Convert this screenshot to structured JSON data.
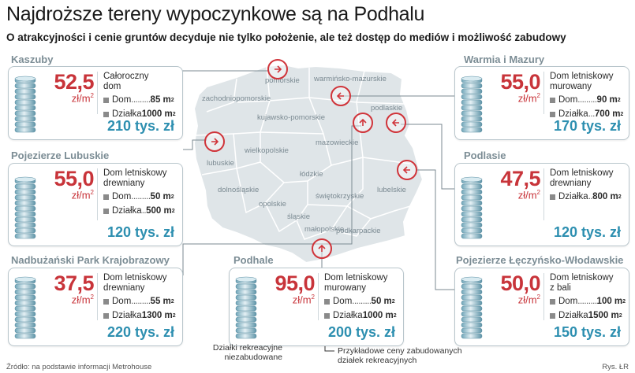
{
  "header": {
    "title": "Najdroższe tereny wypoczynkowe są na Podhalu",
    "subtitle": "O atrakcyjności i cenie gruntów decyduje nie tylko położenie, ale też dostęp do mediów i możliwość zabudowy"
  },
  "map_labels": {
    "pomorskie": "pomorskie",
    "warminsko": "warmińsko-mazurskie",
    "zachodniopomorskie": "zachodniopomorskie",
    "kujawsko": "kujawsko-pomorskie",
    "podlaskie": "podlaskie",
    "lubuskie": "lubuskie",
    "wielkopolskie": "wielkopolskie",
    "mazowieckie": "mazowieckie",
    "lodzkie": "łódzkie",
    "dolnoslaskie": "dolnośląskie",
    "opolskie": "opolskie",
    "swietokrzyskie": "świętokrzyskie",
    "lubelskie": "lubelskie",
    "slaskie": "śląskie",
    "malopolskie": "małopolskie",
    "podkarpackie": "podkarpackie"
  },
  "colors": {
    "price_red": "#c8343a",
    "total_blue": "#2d8fb0",
    "map_fill": "#dfe5e8",
    "card_border": "#b9c6cc",
    "marker_ring": "#d0343a"
  },
  "regions": [
    {
      "id": "kaszuby",
      "name": "Kaszuby",
      "price": "52,5",
      "unit": "zł/m",
      "unit_sup": "2",
      "type_lines": [
        "Całoroczny",
        "dom"
      ],
      "dom_label": "Dom",
      "dom_dots": ".........",
      "dom_value": "85 m",
      "dom_sup": "2",
      "dzialka_label": "Działka",
      "dzialka_dots": "",
      "dzialka_value": "1000 m",
      "dzialka_sup": "2",
      "total": "210 tys. zł"
    },
    {
      "id": "warmia",
      "name": "Warmia i Mazury",
      "price": "55,0",
      "unit": "zł/m",
      "unit_sup": "2",
      "type_lines": [
        "Dom letniskowy",
        "murowany"
      ],
      "dom_label": "Dom",
      "dom_dots": ".........",
      "dom_value": "90 m",
      "dom_sup": "2",
      "dzialka_label": "Działka",
      "dzialka_dots": "...",
      "dzialka_value": "700 m",
      "dzialka_sup": "2",
      "total": "170 tys. zł"
    },
    {
      "id": "lubuskie",
      "name": "Pojezierze Lubuskie",
      "price": "55,0",
      "unit": "zł/m",
      "unit_sup": "2",
      "type_lines": [
        "Dom letniskowy",
        "drewniany"
      ],
      "dom_label": "Dom",
      "dom_dots": ".........",
      "dom_value": "50 m",
      "dom_sup": "2",
      "dzialka_label": "Działka",
      "dzialka_dots": "..",
      "dzialka_value": "500 m",
      "dzialka_sup": "2",
      "total": "120 tys. zł"
    },
    {
      "id": "podlasie",
      "name": "Podlasie",
      "price": "47,5",
      "unit": "zł/m",
      "unit_sup": "2",
      "type_lines": [
        "Dom letniskowy",
        "drewniany"
      ],
      "dzialka_label": "Działka",
      "dzialka_dots": "..",
      "dzialka_value": "800 m",
      "dzialka_sup": "2",
      "total": "120 tys. zł"
    },
    {
      "id": "nadbuzanski",
      "name": "Nadbużański Park Krajobrazowy",
      "price": "37,5",
      "unit": "zł/m",
      "unit_sup": "2",
      "type_lines": [
        "Dom letniskowy",
        "drewniany"
      ],
      "dom_label": "Dom",
      "dom_dots": ".........",
      "dom_value": "55 m",
      "dom_sup": "2",
      "dzialka_label": "Działka",
      "dzialka_dots": "",
      "dzialka_value": "1300 m",
      "dzialka_sup": "2",
      "total": "220 tys. zł"
    },
    {
      "id": "podhale",
      "name": "Podhale",
      "price": "95,0",
      "unit": "zł/m",
      "unit_sup": "2",
      "type_lines": [
        "Dom letniskowy",
        "murowany"
      ],
      "dom_label": "Dom",
      "dom_dots": ".........",
      "dom_value": "50 m",
      "dom_sup": "2",
      "dzialka_label": "Działka",
      "dzialka_dots": "",
      "dzialka_value": "1000 m",
      "dzialka_sup": "2",
      "total": "200 tys. zł"
    },
    {
      "id": "leczynsko",
      "name": "Pojezierze Łęczyńsko-Włodawskie",
      "price": "50,0",
      "unit": "zł/m",
      "unit_sup": "2",
      "type_lines": [
        "Dom letniskowy",
        "z bali"
      ],
      "dom_label": "Dom",
      "dom_dots": ".........",
      "dom_value": "100 m",
      "dom_sup": "2",
      "dzialka_label": "Działka",
      "dzialka_dots": "",
      "dzialka_value": "1500 m",
      "dzialka_sup": "2",
      "total": "150 tys. zł"
    }
  ],
  "legend": {
    "left_note_line1": "Działki rekreacyjne",
    "left_note_line2": "niezabudowane",
    "right_note_line1": "Przykładowe ceny zabudowanych",
    "right_note_line2": "działek rekreacyjnych"
  },
  "footer": {
    "source": "Źródło: na podstawie informacji Metrohouse",
    "credit": "Rys. ŁR"
  }
}
